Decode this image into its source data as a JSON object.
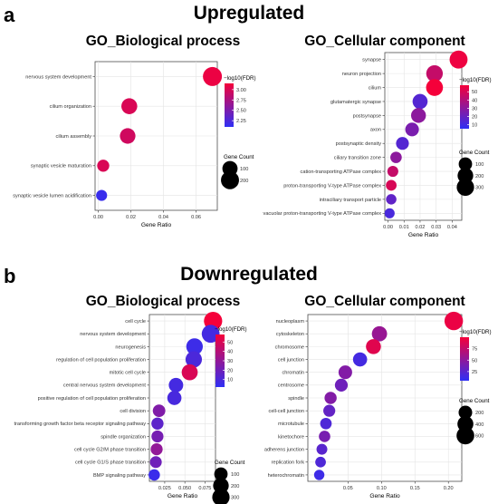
{
  "figure": {
    "label_a": "a",
    "label_b": "b",
    "title_top": "Upregulated",
    "title_bottom": "Downregulated"
  },
  "colors": {
    "low": "#2f2ff5",
    "high": "#f5003a"
  },
  "chart_data": [
    {
      "type": "scatter",
      "title": "GO_Biological process",
      "xlabel": "Gene Ratio",
      "xlim": [
        -0.002,
        0.073
      ],
      "xticks": [
        0.0,
        0.02,
        0.04,
        0.06
      ],
      "xtick_labels": [
        "0.00",
        "0.02",
        "0.04",
        "0.06"
      ],
      "categories": [
        "nervous system development",
        "cilium organization",
        "cilium assembly",
        "synaptic vesicle maturation",
        "synaptic vesicle lumen acidification"
      ],
      "x": [
        0.07,
        0.019,
        0.018,
        0.003,
        0.002
      ],
      "gene_count": [
        240,
        120,
        110,
        30,
        15
      ],
      "fdr_log10": [
        3.1,
        3.0,
        2.95,
        3.0,
        2.15
      ],
      "color_legend": {
        "title": "−log10(FDR)",
        "ticks": [
          3.0,
          2.75,
          2.5,
          2.25
        ],
        "tick_labels": [
          "3.00",
          "2.75",
          "2.50",
          "2.25"
        ],
        "range": [
          2.1,
          3.15
        ]
      },
      "size_legend": {
        "title": "Gene Count",
        "values": [
          100,
          200
        ],
        "labels": [
          "100",
          "200"
        ]
      }
    },
    {
      "type": "scatter",
      "title": "GO_Cellular component",
      "xlabel": "Gene Ratio",
      "xlim": [
        -0.002,
        0.046
      ],
      "xticks": [
        0.0,
        0.01,
        0.02,
        0.03,
        0.04
      ],
      "xtick_labels": [
        "0.00",
        "0.01",
        "0.02",
        "0.03",
        "0.04"
      ],
      "categories": [
        "synapse",
        "neuron projection",
        "cilium",
        "glutamatergic synapse",
        "postsynapse",
        "axon",
        "postsynaptic density",
        "ciliary transition zone",
        "cation-transporting ATPase complex",
        "proton-transporting V-type ATPase complex",
        "intraciliary transport particle",
        "vacuolar proton-transporting V-type ATPase complex"
      ],
      "x": [
        0.044,
        0.029,
        0.029,
        0.02,
        0.019,
        0.015,
        0.009,
        0.005,
        0.003,
        0.002,
        0.002,
        0.001
      ],
      "gene_count": [
        340,
        250,
        270,
        170,
        160,
        110,
        80,
        40,
        30,
        25,
        20,
        15
      ],
      "fdr_log10": [
        56,
        45,
        58,
        15,
        30,
        25,
        15,
        30,
        45,
        50,
        18,
        12
      ],
      "color_legend": {
        "title": "−log10(FDR)",
        "ticks": [
          50,
          40,
          30,
          20,
          10
        ],
        "tick_labels": [
          "50",
          "40",
          "30",
          "20",
          "10"
        ],
        "range": [
          5,
          58
        ]
      },
      "size_legend": {
        "title": "Gene Count",
        "values": [
          100,
          200,
          300
        ],
        "labels": [
          "100",
          "200",
          "300"
        ]
      }
    },
    {
      "type": "scatter",
      "title": "GO_Biological process",
      "xlabel": "Gene Ratio",
      "xlim": [
        0.006,
        0.088
      ],
      "xticks": [
        0.025,
        0.05,
        0.075
      ],
      "xtick_labels": [
        "0.025",
        "0.050",
        "0.075"
      ],
      "categories": [
        "cell cycle",
        "nervous system development",
        "neurogenesis",
        "regulation of cell population proliferation",
        "mitotic cell cycle",
        "central nervous system development",
        "positive regulation of cell population proliferation",
        "cell division",
        "transforming growth factor beta receptor signaling pathway",
        "spindle organization",
        "cell cycle G2/M phase transition",
        "cell cycle G1/S phase transition",
        "BMP signaling pathway"
      ],
      "x": [
        0.085,
        0.082,
        0.062,
        0.061,
        0.056,
        0.039,
        0.037,
        0.018,
        0.016,
        0.016,
        0.015,
        0.014,
        0.012
      ],
      "gene_count": [
        360,
        330,
        250,
        240,
        220,
        140,
        130,
        70,
        60,
        55,
        55,
        50,
        40
      ],
      "fdr_log10": [
        58,
        8,
        6,
        10,
        50,
        8,
        9,
        25,
        15,
        22,
        30,
        20,
        5
      ],
      "color_legend": {
        "title": "−log10(FDR)",
        "ticks": [
          50,
          40,
          30,
          20,
          10
        ],
        "tick_labels": [
          "50",
          "40",
          "30",
          "20",
          "10"
        ],
        "range": [
          2,
          58
        ]
      },
      "size_legend": {
        "title": "Gene Count",
        "values": [
          100,
          200,
          300
        ],
        "labels": [
          "100",
          "200",
          "300"
        ]
      }
    },
    {
      "type": "scatter",
      "title": "GO_Cellular component",
      "xlabel": "Gene Ratio",
      "xlim": [
        -0.01,
        0.22
      ],
      "xticks": [
        0.05,
        0.1,
        0.15,
        0.2
      ],
      "xtick_labels": [
        "0.05",
        "0.10",
        "0.15",
        "0.20"
      ],
      "categories": [
        "nucleoplasm",
        "cytoskeleton",
        "chromosome",
        "cell junction",
        "chromatin",
        "centrosome",
        "spindle",
        "cell-cell junction",
        "microtubule",
        "kinetochore",
        "adherens junction",
        "replication fork",
        "heterochromatin"
      ],
      "x": [
        0.208,
        0.097,
        0.088,
        0.068,
        0.046,
        0.04,
        0.024,
        0.022,
        0.017,
        0.015,
        0.011,
        0.009,
        0.007
      ],
      "gene_count": [
        700,
        330,
        310,
        240,
        200,
        150,
        110,
        100,
        80,
        75,
        50,
        45,
        35
      ],
      "fdr_log10": [
        95,
        55,
        90,
        15,
        45,
        35,
        45,
        30,
        20,
        40,
        25,
        20,
        12
      ],
      "color_legend": {
        "title": "−log10(FDR)",
        "ticks": [
          75,
          50,
          25
        ],
        "tick_labels": [
          "75",
          "50",
          "25"
        ],
        "range": [
          5,
          100
        ]
      },
      "size_legend": {
        "title": "Gene Count",
        "values": [
          200,
          400,
          600
        ],
        "labels": [
          "200",
          "400",
          "600"
        ]
      }
    }
  ]
}
